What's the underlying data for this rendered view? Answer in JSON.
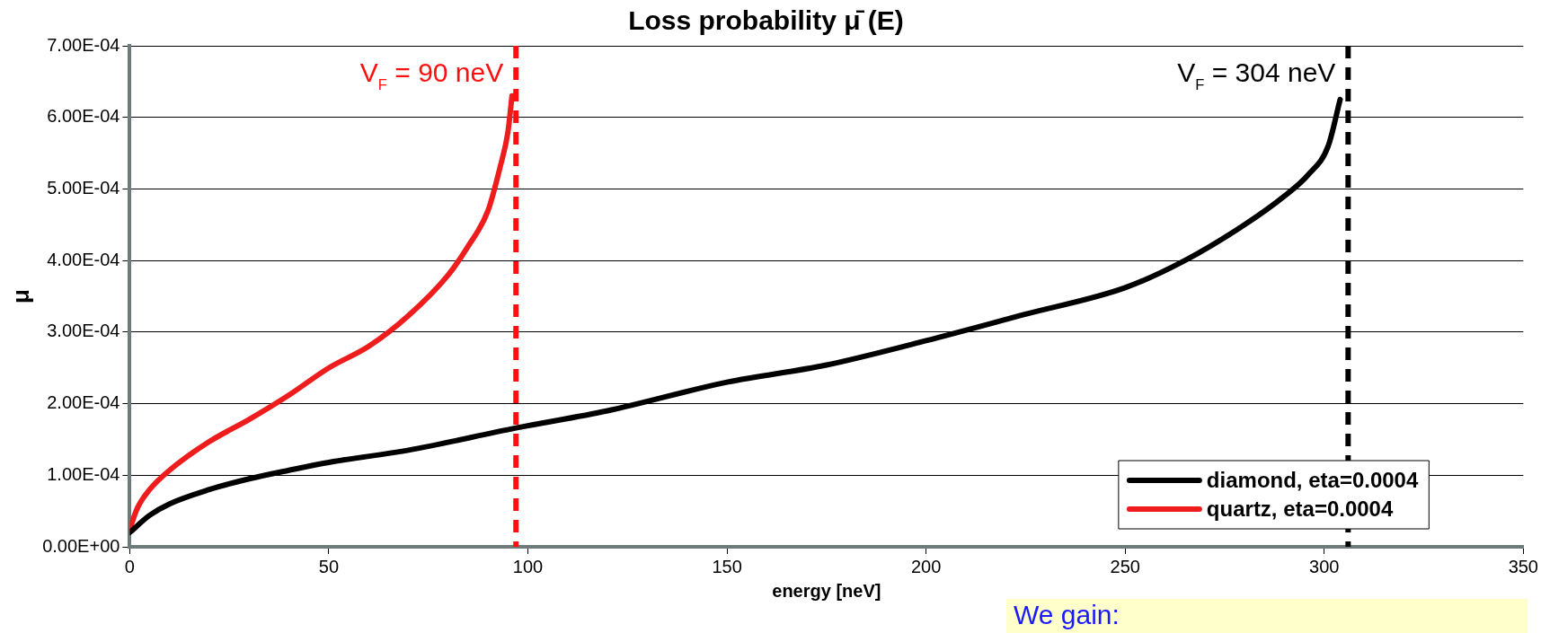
{
  "chart_data": {
    "type": "line",
    "title": "Loss probability μ̄ (E)",
    "xlabel": "energy [neV]",
    "ylabel": "μ",
    "series": [
      {
        "name": "diamond, eta=0.0004",
        "color": "#000000",
        "x": [
          0,
          5,
          10,
          20,
          30,
          40,
          50,
          70,
          97,
          120,
          150,
          175,
          200,
          225,
          250,
          265,
          280,
          290,
          296,
          301,
          304
        ],
        "values": [
          2e-05,
          4.4e-05,
          6e-05,
          8e-05,
          9.5e-05,
          0.000107,
          0.000118,
          0.000135,
          0.000166,
          0.00019,
          0.00023,
          0.000254,
          0.000288,
          0.000325,
          0.000362,
          0.0004,
          0.00045,
          0.00049,
          0.00052,
          0.00056,
          0.000625
        ]
      },
      {
        "name": "quartz, eta=0.0004",
        "color": "#ee1c1c",
        "x": [
          0,
          2,
          5,
          10,
          20,
          30,
          40,
          50,
          60,
          70,
          80,
          85,
          90,
          93,
          95,
          96
        ],
        "values": [
          2.5e-05,
          5.5e-05,
          8e-05,
          0.000107,
          0.000147,
          0.000178,
          0.000212,
          0.00025,
          0.00028,
          0.000323,
          0.00038,
          0.00042,
          0.00047,
          0.00053,
          0.00058,
          0.00063
        ]
      }
    ],
    "xlim": [
      0,
      350
    ],
    "xticks": [
      0,
      50,
      100,
      150,
      200,
      250,
      300,
      350
    ],
    "ylim": [
      0,
      0.0007
    ],
    "yticks": [
      {
        "value": 0,
        "label": "0.00E+00"
      },
      {
        "value": 0.0001,
        "label": "1.00E-04"
      },
      {
        "value": 0.0002,
        "label": "2.00E-04"
      },
      {
        "value": 0.0003,
        "label": "3.00E-04"
      },
      {
        "value": 0.0004,
        "label": "4.00E-04"
      },
      {
        "value": 0.0005,
        "label": "5.00E-04"
      },
      {
        "value": 0.0006,
        "label": "6.00E-04"
      },
      {
        "value": 0.0007,
        "label": "7.00E-04"
      }
    ],
    "ref_lines": [
      {
        "axis": "x",
        "value": 97,
        "color": "#ff1010",
        "line_style": "dashed"
      },
      {
        "axis": "x",
        "value": 306,
        "color": "#000000",
        "line_style": "dashed"
      }
    ],
    "annotations": [
      "V$_{F}$ = 90 neV",
      "V$_{F}$ = 304 neV",
      "We gain:"
    ],
    "grid": "y",
    "legend": "bottom right",
    "marker": "none",
    "line_style": "solid"
  }
}
